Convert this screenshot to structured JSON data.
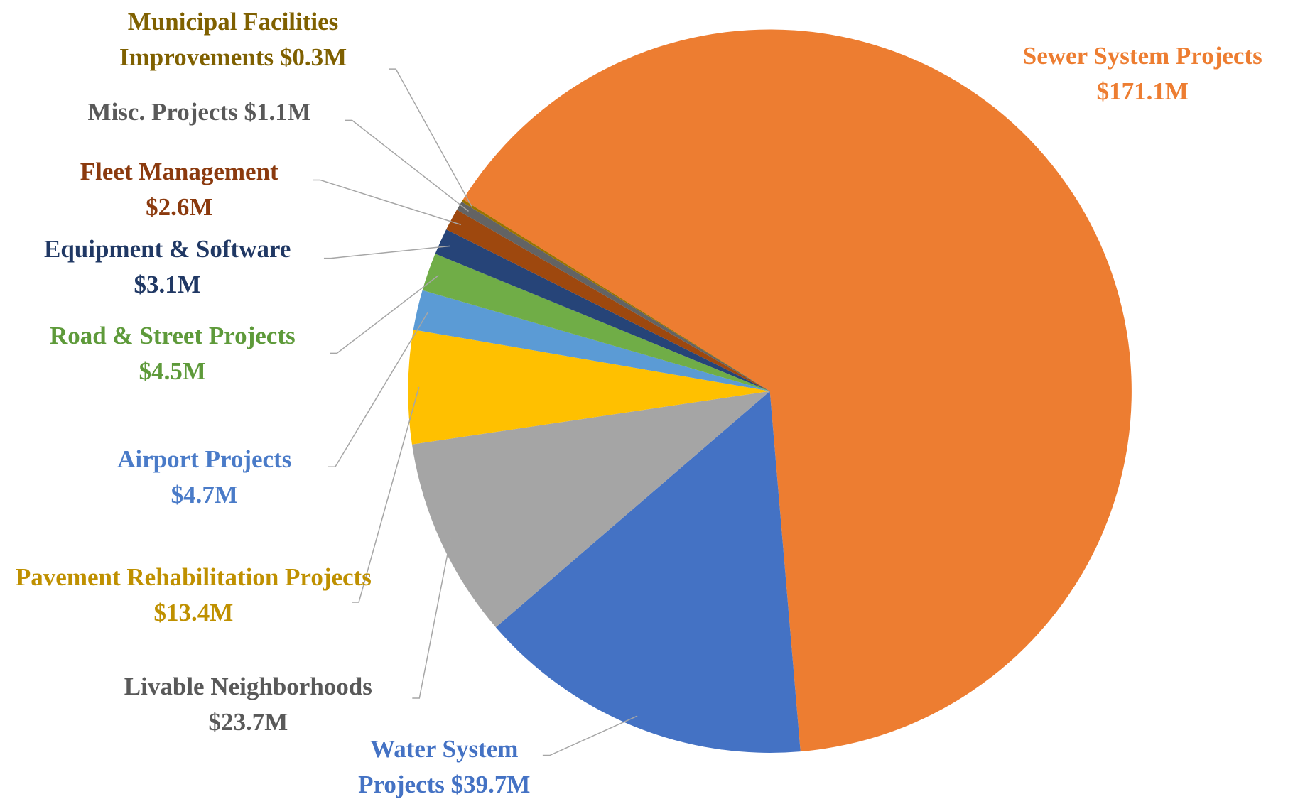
{
  "chart_data": {
    "type": "pie",
    "categories": [
      "Sewer System Projects",
      "Water System Projects",
      "Livable Neighborhoods",
      "Pavement Rehabilitation Projects",
      "Airport Projects",
      "Road & Street Projects",
      "Equipment & Software",
      "Fleet Management",
      "Misc. Projects",
      "Municipal Facilities Improvements"
    ],
    "values": [
      171.1,
      39.7,
      23.7,
      13.4,
      4.7,
      4.5,
      3.1,
      2.6,
      1.1,
      0.3
    ],
    "value_labels": [
      "$171.1M",
      "$39.7M",
      "$23.7M",
      "$13.4M",
      "$4.7M",
      "$4.5M",
      "$3.1M",
      "$2.6M",
      "$1.1M",
      "$0.3M"
    ],
    "colors": [
      "#ED7D31",
      "#4472C4",
      "#A5A5A5",
      "#FFC000",
      "#5B9BD5",
      "#70AD47",
      "#264478",
      "#9E480E",
      "#636363",
      "#997300"
    ],
    "label_colors": [
      "#ED7D31",
      "#4472C4",
      "#595959",
      "#BF9000",
      "#4A7BC8",
      "#5E9A3A",
      "#203864",
      "#8B3A0E",
      "#595959",
      "#7F6000"
    ]
  }
}
